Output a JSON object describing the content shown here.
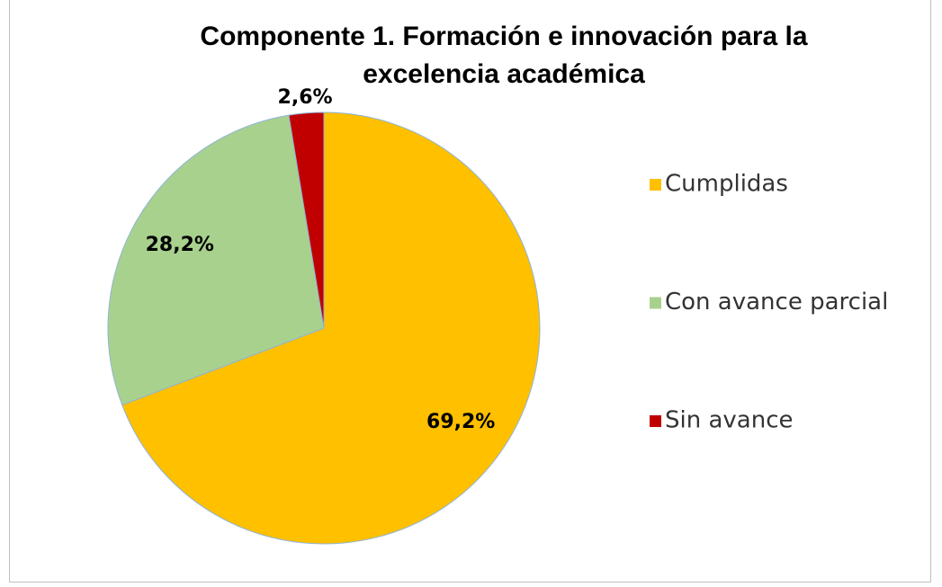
{
  "chart_data": {
    "type": "pie",
    "title": "Componente 1. Formación e innovación para la excelencia académica",
    "categories": [
      "Cumplidas",
      "Con avance parcial",
      "Sin avance"
    ],
    "values": [
      69.2,
      28.2,
      2.6
    ],
    "value_labels": [
      "69,2%",
      "28,2%",
      "2,6%"
    ],
    "colors": [
      "#FFC000",
      "#A9D18E",
      "#C00000"
    ],
    "legend": "right"
  }
}
